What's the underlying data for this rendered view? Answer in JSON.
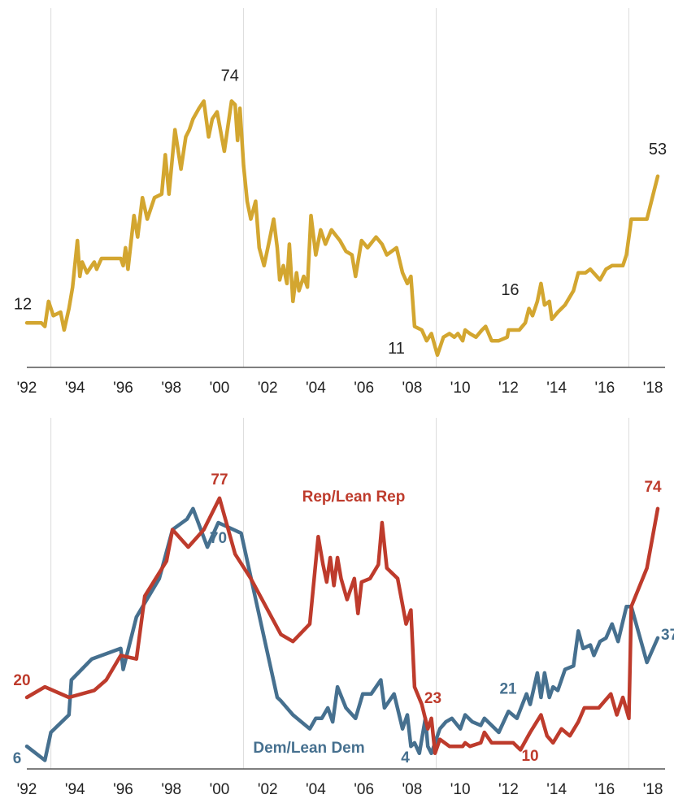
{
  "chart_data": [
    {
      "type": "line",
      "xlim": [
        1992,
        2018.3
      ],
      "ylim": [
        0,
        100
      ],
      "xticks": [
        {
          "value": 1992,
          "label": "'92"
        },
        {
          "value": 1994,
          "label": "'94"
        },
        {
          "value": 1996,
          "label": "'96"
        },
        {
          "value": 1998,
          "label": "'98"
        },
        {
          "value": 2000,
          "label": "'00"
        },
        {
          "value": 2002,
          "label": "'02"
        },
        {
          "value": 2004,
          "label": "'04"
        },
        {
          "value": 2006,
          "label": "'06"
        },
        {
          "value": 2008,
          "label": "'08"
        },
        {
          "value": 2010,
          "label": "'10"
        },
        {
          "value": 2012,
          "label": "'12"
        },
        {
          "value": 2014,
          "label": "'14"
        },
        {
          "value": 2016,
          "label": "'16"
        },
        {
          "value": 2018,
          "label": "'18"
        }
      ],
      "xgrid": [
        1993,
        2001,
        2009,
        2017
      ],
      "color": "#d3a630",
      "x": [
        1992,
        1992.6,
        1992.75,
        1992.9,
        1993.1,
        1993.4,
        1993.55,
        1993.75,
        1993.9,
        1994.1,
        1994.2,
        1994.3,
        1994.5,
        1994.8,
        1994.9,
        1995.1,
        1995.45,
        1995.9,
        1996,
        1996.1,
        1996.2,
        1996.45,
        1996.6,
        1996.8,
        1997,
        1997.3,
        1997.6,
        1997.75,
        1997.9,
        1998.15,
        1998.4,
        1998.6,
        1998.75,
        1998.9,
        1999.15,
        1999.35,
        1999.55,
        1999.7,
        1999.9,
        2000.2,
        2000.5,
        2000.65,
        2000.75,
        2000.85,
        2001,
        2001.15,
        2001.3,
        2001.5,
        2001.65,
        2001.85,
        2002.1,
        2002.25,
        2002.4,
        2002.5,
        2002.65,
        2002.8,
        2002.9,
        2003.05,
        2003.2,
        2003.3,
        2003.5,
        2003.65,
        2003.8,
        2004,
        2004.2,
        2004.4,
        2004.65,
        2005,
        2005.25,
        2005.5,
        2005.65,
        2005.9,
        2006.15,
        2006.5,
        2006.75,
        2006.95,
        2007.35,
        2007.6,
        2007.8,
        2007.95,
        2008.1,
        2008.4,
        2008.6,
        2008.8,
        2009.05,
        2009.3,
        2009.55,
        2009.75,
        2009.9,
        2010.1,
        2010.2,
        2010.4,
        2010.65,
        2010.9,
        2011.05,
        2011.3,
        2011.6,
        2011.95,
        2012,
        2012.25,
        2012.45,
        2012.7,
        2012.85,
        2013,
        2013.2,
        2013.35,
        2013.5,
        2013.7,
        2013.8,
        2014.05,
        2014.35,
        2014.7,
        2014.9,
        2015.2,
        2015.4,
        2015.8,
        2016.05,
        2016.3,
        2016.55,
        2016.75,
        2016.9,
        2017.1,
        2017.75,
        2018.2
      ],
      "values": [
        12,
        12,
        11,
        18,
        14,
        15,
        10,
        16,
        22,
        35,
        25,
        29,
        26,
        29,
        27,
        30,
        30,
        30,
        28,
        33,
        27,
        42,
        36,
        47,
        41,
        47,
        48,
        59,
        48,
        66,
        55,
        64,
        66,
        69,
        72,
        74,
        64,
        69,
        71,
        60,
        74,
        73,
        63,
        72,
        56,
        46,
        41,
        46,
        33,
        28,
        36,
        41,
        33,
        24,
        28,
        23,
        34,
        18,
        26,
        21,
        25,
        22,
        42,
        31,
        38,
        34,
        38,
        35,
        32,
        31,
        25,
        35,
        33,
        36,
        34,
        31,
        33,
        26,
        23,
        25,
        11,
        10,
        7,
        9,
        3,
        8,
        9,
        8,
        9,
        7,
        10,
        9,
        8,
        10,
        11,
        7,
        7,
        8,
        10,
        10,
        10,
        12,
        16,
        14,
        18,
        23,
        17,
        18,
        13,
        15,
        17,
        21,
        26,
        26,
        27,
        24,
        27,
        28,
        28,
        28,
        31,
        41,
        41,
        53
      ],
      "labels": [
        {
          "x": 1992,
          "value": 12
        },
        {
          "x": 2000.5,
          "value": 74
        },
        {
          "x": 2008.1,
          "value": 11
        },
        {
          "x": 2012.85,
          "value": 16
        },
        {
          "x": 2018.2,
          "value": 53
        }
      ]
    },
    {
      "type": "line",
      "xlim": [
        1992,
        2018.3
      ],
      "ylim": [
        0,
        100
      ],
      "xticks": [
        {
          "value": 1992,
          "label": "'92"
        },
        {
          "value": 1994,
          "label": "'94"
        },
        {
          "value": 1996,
          "label": "'96"
        },
        {
          "value": 1998,
          "label": "'98"
        },
        {
          "value": 2000,
          "label": "'00"
        },
        {
          "value": 2002,
          "label": "'02"
        },
        {
          "value": 2004,
          "label": "'04"
        },
        {
          "value": 2006,
          "label": "'06"
        },
        {
          "value": 2008,
          "label": "'08"
        },
        {
          "value": 2010,
          "label": "'10"
        },
        {
          "value": 2012,
          "label": "'12"
        },
        {
          "value": 2014,
          "label": "'14"
        },
        {
          "value": 2016,
          "label": "'16"
        },
        {
          "value": 2018,
          "label": "'18"
        }
      ],
      "xgrid": [
        1993,
        2001,
        2009,
        2017
      ],
      "series": [
        {
          "name": "Dem/Lean Dem",
          "color": "#46708f",
          "x": [
            1992,
            1992.75,
            1993,
            1993.75,
            1993.85,
            1994.7,
            1995.9,
            1996,
            1996.55,
            1997.5,
            1998.05,
            1998.65,
            1998.9,
            1999.5,
            1999.95,
            2000.9,
            2002.4,
            2002.55,
            2003.05,
            2003.75,
            2004,
            2004.25,
            2004.5,
            2004.7,
            2004.9,
            2005.25,
            2005.65,
            2005.95,
            2006.3,
            2006.7,
            2006.85,
            2007.25,
            2007.6,
            2007.8,
            2007.95,
            2008.1,
            2008.3,
            2008.55,
            2008.65,
            2008.8,
            2009.15,
            2009.4,
            2009.65,
            2010,
            2010.2,
            2010.5,
            2010.85,
            2011,
            2011.3,
            2011.6,
            2012,
            2012.35,
            2012.75,
            2012.9,
            2013.2,
            2013.35,
            2013.5,
            2013.7,
            2013.85,
            2014.05,
            2014.35,
            2014.7,
            2014.9,
            2015.1,
            2015.4,
            2015.55,
            2015.8,
            2016.05,
            2016.3,
            2016.55,
            2016.9,
            2017.1,
            2017.75,
            2018.2
          ],
          "values": [
            6,
            2,
            10,
            15,
            25,
            31,
            34,
            28,
            43,
            54,
            68,
            71,
            74,
            63,
            70,
            67,
            20,
            19,
            15,
            11,
            14,
            14,
            17,
            13,
            23,
            17,
            14,
            21,
            21,
            25,
            17,
            21,
            11,
            15,
            6,
            7,
            4,
            14,
            6,
            4,
            11,
            13,
            14,
            11,
            15,
            13,
            12,
            14,
            12,
            10,
            16,
            14,
            21,
            18,
            27,
            20,
            27,
            20,
            23,
            22,
            28,
            29,
            39,
            34,
            35,
            32,
            36,
            37,
            41,
            36,
            46,
            46,
            30,
            37
          ],
          "labels": [
            {
              "x": 1992,
              "value": 6
            },
            {
              "x": 1999.95,
              "value": 70
            },
            {
              "x": 2008.3,
              "value": 4
            },
            {
              "x": 2012.75,
              "value": 21
            },
            {
              "x": 2018.2,
              "value": 37
            }
          ]
        },
        {
          "name": "Rep/Lean Rep",
          "color": "#be3b2c",
          "x": [
            1992,
            1992.75,
            1993.75,
            1994.8,
            1995.3,
            1995.9,
            1996.55,
            1996.9,
            1997.8,
            1998.05,
            1998.7,
            1999.35,
            2000,
            2000.65,
            2001.3,
            2002.55,
            2003.05,
            2003.75,
            2004.1,
            2004.3,
            2004.45,
            2004.6,
            2004.75,
            2004.9,
            2005.05,
            2005.3,
            2005.6,
            2005.75,
            2005.9,
            2006.25,
            2006.6,
            2006.75,
            2006.95,
            2007.4,
            2007.75,
            2007.95,
            2008.1,
            2008.4,
            2008.65,
            2008.8,
            2008.95,
            2009.15,
            2009.55,
            2010.1,
            2010.2,
            2010.4,
            2010.85,
            2011,
            2011.3,
            2011.6,
            2012.2,
            2012.5,
            2012.9,
            2013.35,
            2013.6,
            2013.85,
            2014.2,
            2014.55,
            2014.9,
            2015.15,
            2015.75,
            2016.25,
            2016.5,
            2016.75,
            2017,
            2017.1,
            2017.75,
            2018.2
          ],
          "values": [
            20,
            23,
            20,
            22,
            25,
            32,
            31,
            49,
            59,
            68,
            63,
            68,
            77,
            61,
            54,
            38,
            36,
            41,
            66,
            58,
            53,
            60,
            52,
            60,
            54,
            48,
            54,
            44,
            53,
            54,
            58,
            70,
            57,
            54,
            41,
            45,
            23,
            18,
            11,
            14,
            4,
            8,
            6,
            6,
            7,
            6,
            7,
            10,
            7,
            7,
            7,
            5,
            10,
            15,
            9,
            7,
            11,
            9,
            13,
            17,
            17,
            21,
            15,
            20,
            14,
            46,
            57,
            74
          ],
          "labels": [
            {
              "x": 1992,
              "value": 20
            },
            {
              "x": 2000,
              "value": 77
            },
            {
              "x": 2008.1,
              "value": 23
            },
            {
              "x": 2012.9,
              "value": 10
            },
            {
              "x": 2018.2,
              "value": 74
            }
          ]
        }
      ]
    }
  ]
}
